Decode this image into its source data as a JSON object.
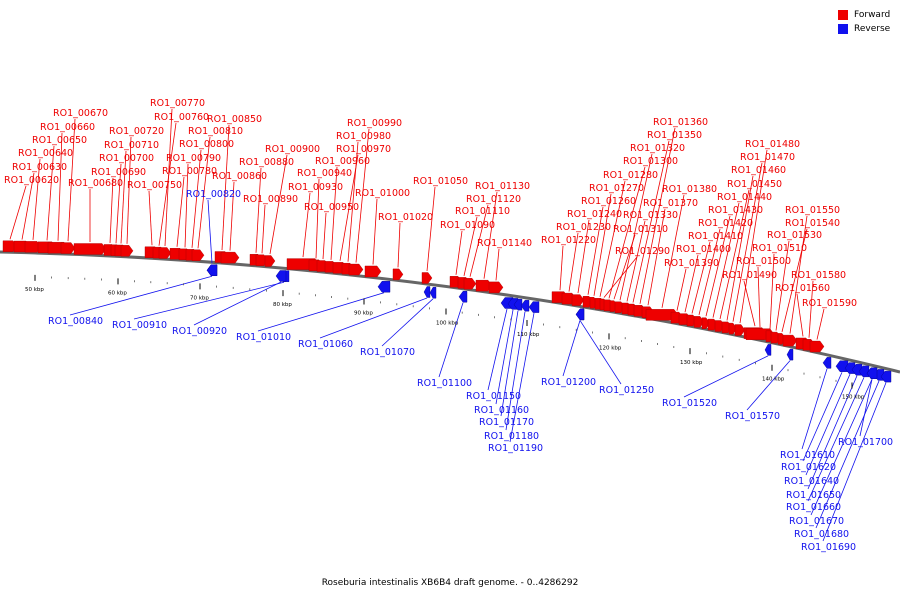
{
  "legend": {
    "forward_label": "Forward",
    "reverse_label": "Reverse",
    "forward_color": "#ee0000",
    "reverse_color": "#1111ee"
  },
  "caption": "Roseburia intestinalis XB6B4 draft genome. - 0..4286292",
  "axis_ticks": [
    "50 kbp",
    "60 kbp",
    "70 kbp",
    "80 kbp",
    "90 kbp",
    "100 kbp",
    "110 kbp",
    "120 kbp",
    "130 kbp",
    "140 kbp",
    "150 kbp"
  ],
  "forward_genes": [
    "RO1_00620",
    "RO1_00630",
    "RO1_00640",
    "RO1_00650",
    "RO1_00660",
    "RO1_00670",
    "RO1_00680",
    "RO1_00690",
    "RO1_00700",
    "RO1_00710",
    "RO1_00720",
    "RO1_00750",
    "RO1_00760",
    "RO1_00770",
    "RO1_00780",
    "RO1_00790",
    "RO1_00800",
    "RO1_00810",
    "RO1_00850",
    "RO1_00860",
    "RO1_00880",
    "RO1_00890",
    "RO1_00900",
    "RO1_00930",
    "RO1_00940",
    "RO1_00950",
    "RO1_00960",
    "RO1_00970",
    "RO1_00980",
    "RO1_00990",
    "RO1_01000",
    "RO1_01020",
    "RO1_01050",
    "RO1_01090",
    "RO1_01110",
    "RO1_01120",
    "RO1_01130",
    "RO1_01140",
    "RO1_01220",
    "RO1_01230",
    "RO1_01240",
    "RO1_01260",
    "RO1_01270",
    "RO1_01280",
    "RO1_01290",
    "RO1_01300",
    "RO1_01310",
    "RO1_01320",
    "RO1_01330",
    "RO1_01350",
    "RO1_01360",
    "RO1_01370",
    "RO1_01380",
    "RO1_01390",
    "RO1_01400",
    "RO1_01410",
    "RO1_01420",
    "RO1_01430",
    "RO1_01440",
    "RO1_01450",
    "RO1_01460",
    "RO1_01470",
    "RO1_01480",
    "RO1_01490",
    "RO1_01500",
    "RO1_01510",
    "RO1_01530",
    "RO1_01540",
    "RO1_01550",
    "RO1_01560",
    "RO1_01580",
    "RO1_01590"
  ],
  "reverse_genes": [
    "RO1_00820",
    "RO1_00840",
    "RO1_00910",
    "RO1_00920",
    "RO1_01010",
    "RO1_01060",
    "RO1_01070",
    "RO1_01100",
    "RO1_01150",
    "RO1_01160",
    "RO1_01170",
    "RO1_01180",
    "RO1_01190",
    "RO1_01200",
    "RO1_01250",
    "RO1_01520",
    "RO1_01570",
    "RO1_01610",
    "RO1_01620",
    "RO1_01640",
    "RO1_01650",
    "RO1_01660",
    "RO1_01670",
    "RO1_01680",
    "RO1_01690",
    "RO1_01700"
  ]
}
